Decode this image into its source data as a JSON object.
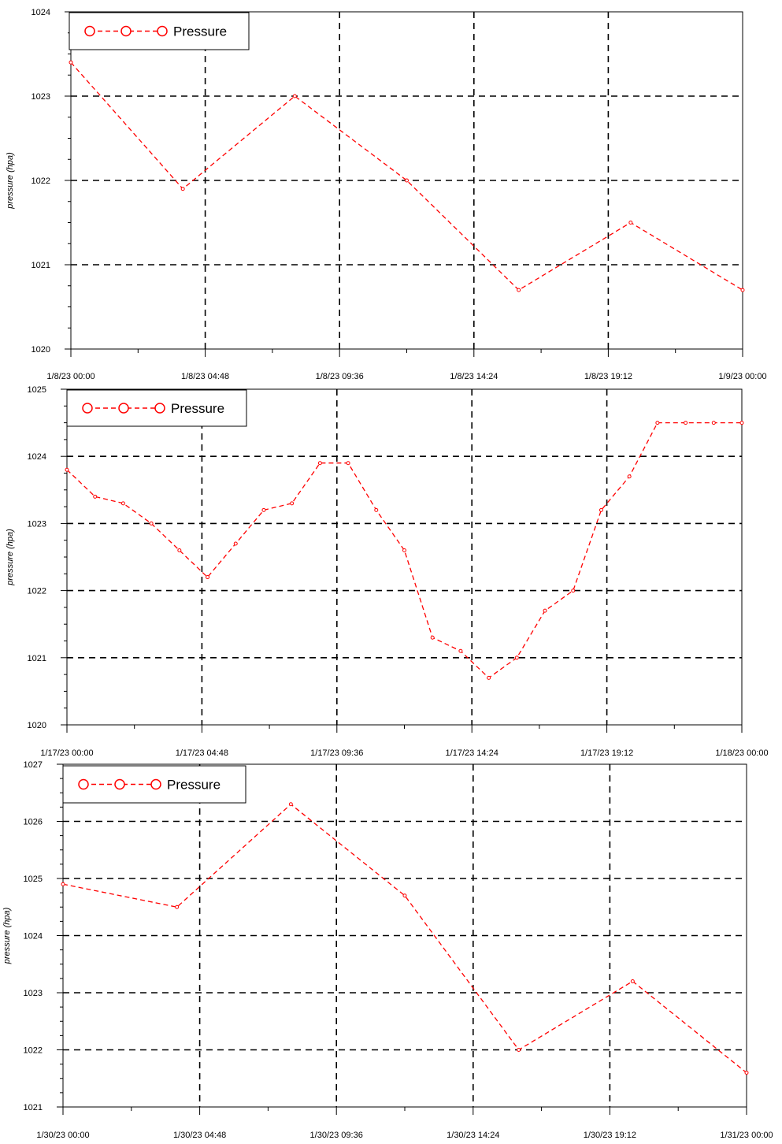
{
  "chart_data": [
    {
      "type": "line",
      "ylabel": "pressure (hpa)",
      "ylim": [
        1020,
        1024
      ],
      "yticks": [
        "1020",
        "1021",
        "1022",
        "1023",
        "1024"
      ],
      "xlim": [
        "1/8/23 00:00",
        "1/9/23 00:00"
      ],
      "xticks": [
        "1/8/23 00:00",
        "1/8/23 04:48",
        "1/8/23 09:36",
        "1/8/23 14:24",
        "1/8/23 19:12",
        "1/9/23 00:00"
      ],
      "grid": true,
      "legend_position": "top-left",
      "series": [
        {
          "name": "Pressure",
          "color": "#ff0000",
          "x": [
            "1/8/23 00:00",
            "1/8/23 04:00",
            "1/8/23 08:00",
            "1/8/23 12:00",
            "1/8/23 16:00",
            "1/8/23 20:00",
            "1/9/23 00:00"
          ],
          "values": [
            1023.4,
            1021.9,
            1023.0,
            1022.0,
            1020.7,
            1021.5,
            1020.7
          ]
        }
      ]
    },
    {
      "type": "line",
      "ylabel": "pressure (hpa)",
      "ylim": [
        1020,
        1025
      ],
      "yticks": [
        "1020",
        "1021",
        "1022",
        "1023",
        "1024",
        "1025"
      ],
      "xlim": [
        "1/17/23 00:00",
        "1/18/23 00:00"
      ],
      "xticks": [
        "1/17/23 00:00",
        "1/17/23 04:48",
        "1/17/23 09:36",
        "1/17/23 14:24",
        "1/17/23 19:12",
        "1/18/23 00:00"
      ],
      "grid": true,
      "legend_position": "top-left",
      "series": [
        {
          "name": "Pressure",
          "color": "#ff0000",
          "x": [
            "1/17/23 00:00",
            "1/17/23 01:00",
            "1/17/23 02:00",
            "1/17/23 03:00",
            "1/17/23 04:00",
            "1/17/23 05:00",
            "1/17/23 06:00",
            "1/17/23 07:00",
            "1/17/23 08:00",
            "1/17/23 09:00",
            "1/17/23 10:00",
            "1/17/23 11:00",
            "1/17/23 12:00",
            "1/17/23 13:00",
            "1/17/23 14:00",
            "1/17/23 15:00",
            "1/17/23 16:00",
            "1/17/23 17:00",
            "1/17/23 18:00",
            "1/17/23 19:00",
            "1/17/23 20:00",
            "1/17/23 21:00",
            "1/17/23 22:00",
            "1/17/23 23:00",
            "1/18/23 00:00"
          ],
          "values": [
            1023.8,
            1023.4,
            1023.3,
            1023.0,
            1022.6,
            1022.2,
            1022.7,
            1023.2,
            1023.3,
            1023.9,
            1023.9,
            1023.2,
            1022.6,
            1021.3,
            1021.1,
            1020.7,
            1021.0,
            1021.7,
            1022.0,
            1023.2,
            1023.7,
            1024.5,
            1024.5,
            1024.5,
            1024.5
          ]
        }
      ]
    },
    {
      "type": "line",
      "ylabel": "pressure (hpa)",
      "ylim": [
        1021,
        1027
      ],
      "yticks": [
        "1021",
        "1022",
        "1023",
        "1024",
        "1025",
        "1026",
        "1027"
      ],
      "xlim": [
        "1/30/23 00:00",
        "1/31/23 00:00"
      ],
      "xticks": [
        "1/30/23 00:00",
        "1/30/23 04:48",
        "1/30/23 09:36",
        "1/30/23 14:24",
        "1/30/23 19:12",
        "1/31/23 00:00"
      ],
      "grid": true,
      "legend_position": "top-left",
      "series": [
        {
          "name": "Pressure",
          "color": "#ff0000",
          "x": [
            "1/30/23 00:00",
            "1/30/23 04:00",
            "1/30/23 08:00",
            "1/30/23 12:00",
            "1/30/23 16:00",
            "1/30/23 20:00",
            "1/31/23 00:00"
          ],
          "values": [
            1024.9,
            1024.5,
            1026.3,
            1024.7,
            1022.0,
            1023.2,
            1021.6
          ]
        }
      ]
    }
  ]
}
